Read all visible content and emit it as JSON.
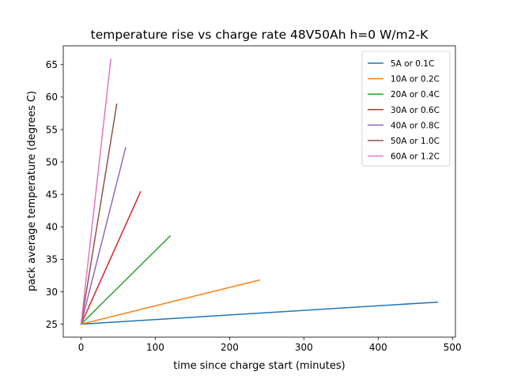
{
  "chart_data": {
    "type": "line",
    "title": "temperature rise vs charge rate 48V50Ah h=0 W/m2-K",
    "xlabel": "time since charge start (minutes)",
    "ylabel": "pack average temperature (degrees C)",
    "xlim": [
      -24,
      504
    ],
    "ylim": [
      23.0,
      67.9
    ],
    "xticks": [
      0,
      100,
      200,
      300,
      400,
      500
    ],
    "yticks": [
      25,
      30,
      35,
      40,
      45,
      50,
      55,
      60,
      65
    ],
    "grid": false,
    "legend_position": "top-right",
    "series": [
      {
        "name": "5A or 0.1C",
        "color": "#1f77b4",
        "x": [
          0,
          480
        ],
        "y": [
          25.0,
          28.4
        ]
      },
      {
        "name": "10A or 0.2C",
        "color": "#ff7f0e",
        "x": [
          0,
          240
        ],
        "y": [
          25.0,
          31.8
        ]
      },
      {
        "name": "20A or 0.4C",
        "color": "#2ca02c",
        "x": [
          0,
          120
        ],
        "y": [
          25.0,
          38.6
        ]
      },
      {
        "name": "30A or 0.6C",
        "color": "#d62728",
        "x": [
          0,
          80
        ],
        "y": [
          25.0,
          45.4
        ]
      },
      {
        "name": "40A or 0.8C",
        "color": "#9467bd",
        "x": [
          0,
          60
        ],
        "y": [
          25.0,
          52.2
        ]
      },
      {
        "name": "50A or 1.0C",
        "color": "#8c564b",
        "x": [
          0,
          48
        ],
        "y": [
          25.0,
          58.9
        ]
      },
      {
        "name": "60A or 1.2C",
        "color": "#e377c2",
        "x": [
          0,
          40
        ],
        "y": [
          25.0,
          65.8
        ]
      }
    ]
  }
}
